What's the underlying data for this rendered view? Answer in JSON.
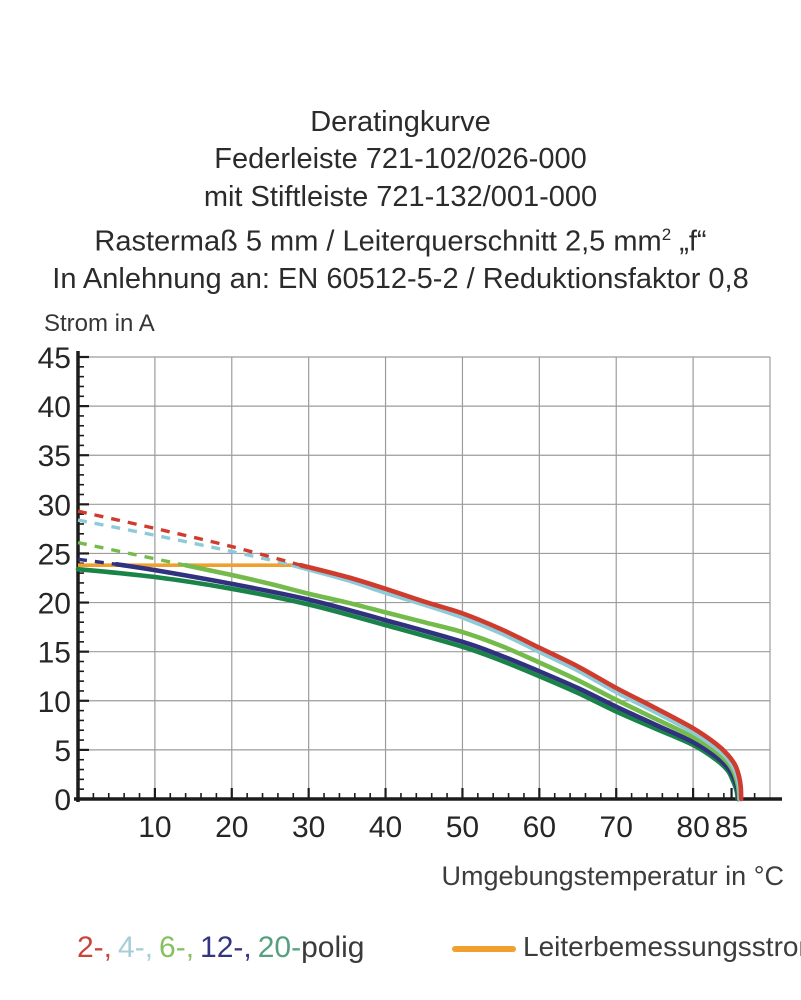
{
  "title": {
    "line1": "Deratingkurve",
    "line2": "Federleiste 721-102/026-000",
    "line3": "mit Stiftleiste 721-132/001-000",
    "line4_main": "Rastermaß 5 mm / Leiterquerschnitt 2,5 mm",
    "line4_sup": "2",
    "line4_tail": " „f“",
    "line5": "In Anlehnung an: EN 60512-5-2 / Reduktionsfaktor 0,8"
  },
  "axes": {
    "y_label": "Strom in A",
    "x_label": "Umgebungstemperatur in °C"
  },
  "legend": {
    "pole_items": [
      {
        "label": "2-,",
        "color": "#c9453a"
      },
      {
        "label": "4-,",
        "color": "#a6ced8"
      },
      {
        "label": "6-,",
        "color": "#87c05f"
      },
      {
        "label": "12-,",
        "color": "#33357f"
      },
      {
        "label": "20-",
        "color": "#55a07f"
      }
    ],
    "pole_suffix": "polig",
    "rated_label": "Leiterbemessungsstrom",
    "rated_color": "#f0a02f"
  },
  "chart_data": {
    "type": "line",
    "title": "Deratingkurve Federleiste 721-102/026-000 mit Stiftleiste 721-132/001-000",
    "xlabel": "Umgebungstemperatur in °C",
    "ylabel": "Strom in A",
    "xlim": [
      0,
      90
    ],
    "ylim": [
      0,
      45
    ],
    "x_major_ticks": [
      10,
      20,
      30,
      40,
      50,
      60,
      70,
      80,
      85
    ],
    "x_minor_step": 2,
    "y_major_ticks": [
      0,
      5,
      10,
      15,
      20,
      25,
      30,
      35,
      40,
      45
    ],
    "y_minor_step": 1,
    "grid": {
      "color": "#9c9c9c",
      "x_step": 10,
      "y_step": 5
    },
    "axis_color": "#1c1c1c",
    "tick_label_color": "#262626",
    "cap_line": {
      "name": "Leiterbemessungsstrom",
      "value": 23.8,
      "color": "#f0a02f",
      "x_start": 0,
      "x_end": 29.3
    },
    "series": [
      {
        "name": "2-polig",
        "color": "#cf3c2e",
        "dashed": [
          [
            0,
            29.3
          ],
          [
            10,
            27.55
          ],
          [
            20,
            25.7
          ],
          [
            29,
            23.8
          ]
        ],
        "solid": [
          [
            29,
            23.8
          ],
          [
            35,
            22.6
          ],
          [
            40,
            21.4
          ],
          [
            45,
            20.1
          ],
          [
            50,
            18.9
          ],
          [
            55,
            17.3
          ],
          [
            60,
            15.4
          ],
          [
            65,
            13.5
          ],
          [
            70,
            11.3
          ],
          [
            75,
            9.3
          ],
          [
            80,
            7.2
          ],
          [
            83,
            5.6
          ],
          [
            84.5,
            4.5
          ],
          [
            85.5,
            3.4
          ],
          [
            86,
            2.2
          ],
          [
            86.2,
            1.2
          ],
          [
            86.25,
            0
          ]
        ]
      },
      {
        "name": "4-polig",
        "color": "#8ecbd9",
        "dashed": [
          [
            0,
            28.4
          ],
          [
            10,
            26.85
          ],
          [
            20,
            25.2
          ],
          [
            28,
            23.8
          ]
        ],
        "solid": [
          [
            28,
            23.8
          ],
          [
            35,
            22.3
          ],
          [
            40,
            21.0
          ],
          [
            45,
            19.8
          ],
          [
            50,
            18.5
          ],
          [
            55,
            16.9
          ],
          [
            60,
            15.0
          ],
          [
            65,
            13.1
          ],
          [
            70,
            10.9
          ],
          [
            75,
            8.9
          ],
          [
            80,
            6.8
          ],
          [
            83,
            5.2
          ],
          [
            84.5,
            4.1
          ],
          [
            85.4,
            3.0
          ],
          [
            85.9,
            1.8
          ],
          [
            86.05,
            0.9
          ],
          [
            86.1,
            0
          ]
        ]
      },
      {
        "name": "6-polig",
        "color": "#74bb4c",
        "dashed": [
          [
            0,
            26.1
          ],
          [
            7,
            24.95
          ],
          [
            14,
            23.8
          ]
        ],
        "solid": [
          [
            14,
            23.8
          ],
          [
            20,
            22.8
          ],
          [
            25,
            21.9
          ],
          [
            30,
            20.9
          ],
          [
            35,
            20.0
          ],
          [
            40,
            19.0
          ],
          [
            45,
            18.0
          ],
          [
            50,
            17.0
          ],
          [
            55,
            15.6
          ],
          [
            60,
            13.9
          ],
          [
            65,
            12.1
          ],
          [
            70,
            10.1
          ],
          [
            75,
            8.2
          ],
          [
            80,
            6.3
          ],
          [
            83,
            4.8
          ],
          [
            84.5,
            3.7
          ],
          [
            85.3,
            2.7
          ],
          [
            85.8,
            1.5
          ],
          [
            85.95,
            0.7
          ],
          [
            86,
            0
          ]
        ]
      },
      {
        "name": "12-polig",
        "color": "#30327f",
        "dashed": [
          [
            0,
            24.4
          ],
          [
            5,
            23.9
          ]
        ],
        "solid": [
          [
            5,
            23.9
          ],
          [
            10,
            23.3
          ],
          [
            20,
            21.9
          ],
          [
            30,
            20.3
          ],
          [
            40,
            18.2
          ],
          [
            50,
            16.0
          ],
          [
            55,
            14.6
          ],
          [
            60,
            13.0
          ],
          [
            65,
            11.3
          ],
          [
            70,
            9.4
          ],
          [
            75,
            7.6
          ],
          [
            80,
            5.8
          ],
          [
            83,
            4.3
          ],
          [
            84.5,
            3.2
          ],
          [
            85.2,
            2.3
          ],
          [
            85.7,
            1.2
          ],
          [
            85.85,
            0.5
          ],
          [
            85.9,
            0
          ]
        ]
      },
      {
        "name": "20-polig",
        "color": "#198348",
        "solid": [
          [
            0,
            23.4
          ],
          [
            10,
            22.6
          ],
          [
            20,
            21.4
          ],
          [
            30,
            19.8
          ],
          [
            40,
            17.7
          ],
          [
            50,
            15.5
          ],
          [
            55,
            14.1
          ],
          [
            60,
            12.5
          ],
          [
            65,
            10.8
          ],
          [
            70,
            8.9
          ],
          [
            75,
            7.2
          ],
          [
            80,
            5.5
          ],
          [
            83,
            4.0
          ],
          [
            84.5,
            2.9
          ],
          [
            85.1,
            2.0
          ],
          [
            85.6,
            1.0
          ],
          [
            85.75,
            0.4
          ],
          [
            85.8,
            0
          ]
        ]
      }
    ]
  }
}
